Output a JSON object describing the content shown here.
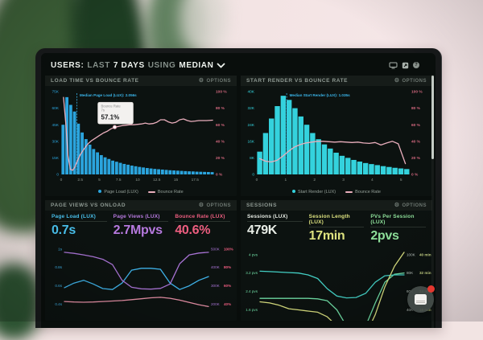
{
  "topbar": {
    "segments": [
      {
        "text": "USERS:",
        "emph": true
      },
      {
        "text": "LAST",
        "emph": false
      },
      {
        "text": "7 DAYS",
        "emph": true
      },
      {
        "text": "USING",
        "emph": false
      },
      {
        "text": "MEDIAN",
        "emph": true
      }
    ],
    "icons": [
      "monitor-icon",
      "export-icon",
      "help-icon"
    ]
  },
  "chart_data": [
    {
      "id": "load-time-vs-bounce-rate",
      "type": "bar",
      "title": "LOAD TIME VS BOUNCE RATE",
      "options_label": "OPTIONS",
      "xlabel": "seconds",
      "x_max": 20,
      "x_ticks": [
        0,
        2.5,
        5,
        7.5,
        10,
        12.5,
        15,
        17.5
      ],
      "left_ticks": [
        "0",
        "15K",
        "30K",
        "45K",
        "60K",
        "75K"
      ],
      "left_max_k": 75,
      "right_ticks": [
        "0 %",
        "20 %",
        "40 %",
        "60 %",
        "80 %",
        "100 %"
      ],
      "right_max_pct": 100,
      "bar_series": {
        "name": "Page Load (LUX)",
        "color": "#2ba4dd",
        "bin_width_s": 0.5,
        "values_k": [
          45,
          70,
          63,
          57,
          46,
          38,
          32,
          27,
          23,
          20,
          17.5,
          15.5,
          14,
          12.5,
          11.5,
          10.5,
          9.5,
          8.8,
          8,
          7.4,
          6.8,
          6.3,
          5.8,
          5.4,
          5,
          4.7,
          4.4,
          4.1,
          3.8,
          3.6,
          3.4,
          3.2,
          3,
          2.8,
          2.7,
          2.5,
          2.4,
          2.3,
          2.2,
          2.1
        ]
      },
      "line_series": {
        "name": "Bounce Rate",
        "color": "#e9aebc",
        "points": [
          [
            0.3,
            93
          ],
          [
            0.6,
            62
          ],
          [
            0.9,
            22
          ],
          [
            1.2,
            6
          ],
          [
            1.5,
            5
          ],
          [
            1.8,
            9
          ],
          [
            2.1,
            16
          ],
          [
            2.5,
            24
          ],
          [
            3,
            31
          ],
          [
            3.5,
            37
          ],
          [
            4,
            41
          ],
          [
            4.5,
            44
          ],
          [
            5,
            47
          ],
          [
            5.5,
            50
          ],
          [
            6,
            52
          ],
          [
            6.5,
            55
          ],
          [
            7,
            57.1
          ],
          [
            7.5,
            58
          ],
          [
            8,
            59
          ],
          [
            8.5,
            59.5
          ],
          [
            9,
            60
          ],
          [
            9.5,
            60
          ],
          [
            10,
            60.5
          ],
          [
            10.5,
            61
          ],
          [
            11,
            62
          ],
          [
            11.5,
            61
          ],
          [
            12,
            61.5
          ],
          [
            12.5,
            63
          ],
          [
            13,
            66
          ],
          [
            13.5,
            66
          ],
          [
            14,
            63.5
          ],
          [
            14.5,
            62
          ],
          [
            15,
            63
          ],
          [
            15.5,
            66
          ],
          [
            16,
            67
          ],
          [
            16.5,
            65
          ],
          [
            17,
            64
          ],
          [
            17.5,
            64.5
          ],
          [
            18,
            65
          ],
          [
            19,
            65
          ],
          [
            19.8,
            65.5
          ]
        ]
      },
      "median_annotation": {
        "label": "Median Page Load (LUX): 2.056s",
        "x_s": 2.056
      },
      "tooltip": {
        "title": "Bounce Rate",
        "x_label": "7s",
        "value": "57.1%",
        "x_s": 7,
        "y_pct": 57.1
      },
      "legend": [
        {
          "label": "Page Load (LUX)",
          "marker": "dot",
          "color": "#2ba4dd"
        },
        {
          "label": "Bounce Rate",
          "marker": "line",
          "color": "#e9aebc"
        }
      ]
    },
    {
      "id": "start-render-vs-bounce-rate",
      "type": "bar",
      "title": "START RENDER VS BOUNCE RATE",
      "options_label": "OPTIONS",
      "xlabel": "seconds",
      "x_max": 5.3,
      "x_ticks": [
        0,
        1,
        2,
        3,
        4,
        5
      ],
      "left_ticks": [
        "0",
        "8K",
        "16K",
        "24K",
        "32K",
        "40K"
      ],
      "left_max_k": 40,
      "right_ticks": [
        "0 %",
        "20 %",
        "40 %",
        "60 %",
        "80 %",
        "100 %"
      ],
      "right_max_pct": 100,
      "bar_series": {
        "name": "Start Render (LUX)",
        "color": "#34d2dd",
        "bin_width_s": 0.2,
        "values_k": [
          11,
          20,
          27,
          33,
          38,
          36,
          32,
          28,
          24,
          20,
          17,
          14.5,
          12.5,
          10.5,
          9,
          8,
          7,
          6.2,
          5.5,
          5,
          4.5,
          4,
          3.6,
          3.2,
          2.9,
          2.6
        ]
      },
      "line_series": {
        "name": "Bounce Rate",
        "color": "#e9aebc",
        "points": [
          [
            0.1,
            19
          ],
          [
            0.3,
            16
          ],
          [
            0.5,
            15
          ],
          [
            0.7,
            17
          ],
          [
            0.9,
            22
          ],
          [
            1.1,
            28
          ],
          [
            1.3,
            33
          ],
          [
            1.5,
            36
          ],
          [
            1.7,
            38
          ],
          [
            1.9,
            39
          ],
          [
            2.1,
            40
          ],
          [
            2.3,
            40
          ],
          [
            2.5,
            39.5
          ],
          [
            2.7,
            39
          ],
          [
            2.9,
            39.5
          ],
          [
            3.1,
            39
          ],
          [
            3.3,
            38.5
          ],
          [
            3.5,
            39
          ],
          [
            3.7,
            38
          ],
          [
            3.9,
            37.5
          ],
          [
            4.1,
            38.5
          ],
          [
            4.3,
            35.5
          ],
          [
            4.5,
            38
          ],
          [
            4.7,
            40
          ],
          [
            4.9,
            37
          ],
          [
            5.15,
            13
          ]
        ]
      },
      "median_annotation": {
        "label": "Median Start Render (LUX): 1.035s",
        "x_s": 1.035
      },
      "tooltip": null,
      "legend": [
        {
          "label": "Start Render (LUX)",
          "marker": "dot",
          "color": "#34d2dd"
        },
        {
          "label": "Bounce Rate",
          "marker": "line",
          "color": "#e9aebc"
        }
      ]
    },
    {
      "id": "page-views-vs-onload",
      "type": "line",
      "title": "PAGE VIEWS VS ONLOAD",
      "options_label": "OPTIONS",
      "metrics": [
        {
          "label": "Page Load (LUX)",
          "value": "0.7s",
          "color": "#4ac3f0"
        },
        {
          "label": "Page Views (LUX)",
          "value": "2.7Mpvs",
          "color": "#b679de"
        },
        {
          "label": "Bounce Rate (LUX)",
          "value": "40.6%",
          "color": "#ee5e80"
        }
      ],
      "left_ticks": [
        "1s",
        "0.8s",
        "0.6s",
        "0.4s"
      ],
      "right_ticks": [
        [
          "500K",
          "100%"
        ],
        [
          "400K",
          "80%"
        ],
        [
          "300K",
          "60%"
        ],
        [
          "200K",
          "40%"
        ]
      ],
      "right_tick_colors": [
        "#a873d4",
        "#ee5e80"
      ],
      "series": [
        {
          "name": "Page Load (LUX)",
          "unit": "s",
          "color": "#3fb3ea",
          "scale_min": 0.3,
          "scale_max": 1.05,
          "values": [
            0.58,
            0.63,
            0.66,
            0.62,
            0.57,
            0.56,
            0.63,
            0.77,
            0.79,
            0.79,
            0.78,
            0.63,
            0.56,
            0.6,
            0.66,
            0.7
          ]
        },
        {
          "name": "Page Views (LUX)",
          "unit": "K",
          "color": "#a873d4",
          "scale_min": 150,
          "scale_max": 525,
          "values": [
            482,
            476,
            468,
            458,
            444,
            415,
            330,
            292,
            284,
            282,
            286,
            310,
            420,
            468,
            478,
            482
          ]
        },
        {
          "name": "Bounce Rate (LUX)",
          "unit": "%",
          "color": "#e58fa5",
          "scale_min": 30,
          "scale_max": 105,
          "values": [
            43,
            42.5,
            42.2,
            42.5,
            43,
            43.5,
            44,
            45,
            46,
            47,
            47.5,
            46.5,
            44.5,
            42,
            39.5,
            37.5
          ]
        }
      ]
    },
    {
      "id": "sessions",
      "type": "line",
      "title": "SESSIONS",
      "options_label": "OPTIONS",
      "metrics": [
        {
          "label": "Sessions (LUX)",
          "value": "479K",
          "color": "#e8ede6"
        },
        {
          "label": "Session Length (LUX)",
          "value": "17min",
          "color": "#dde27f"
        },
        {
          "label": "PVs Per Session (LUX)",
          "value": "2pvs",
          "color": "#8ee09a"
        }
      ],
      "left_ticks": [
        "4 pvs",
        "3.2 pvs",
        "2.4 pvs",
        "1.6 pvs"
      ],
      "right_ticks": [
        [
          "100K",
          "40 min"
        ],
        [
          "80K",
          "32 min"
        ],
        [
          "60K",
          "24 min"
        ],
        [
          "40K",
          "16 min"
        ]
      ],
      "right_tick_colors": [
        "#b9c3bd",
        "#c9d687"
      ],
      "series": [
        {
          "name": "PVs Per Session (LUX)",
          "unit": "pvs",
          "color": "#6fdca4",
          "scale_min": 1.2,
          "scale_max": 4.2,
          "values": [
            2.1,
            2.1,
            2.1,
            2.1,
            2.1,
            2.1,
            2.08,
            2.0,
            1.6,
            0.9,
            0.4,
            0.9,
            1.9,
            2.8,
            3.15,
            3.2
          ]
        },
        {
          "name": "Sessions (LUX)",
          "unit": "K",
          "color": "#43cfc4",
          "scale_min": 30,
          "scale_max": 105,
          "values": [
            82,
            81.5,
            81,
            80.5,
            80,
            78,
            74,
            63,
            55,
            53,
            53.5,
            58,
            70,
            77,
            78,
            78
          ]
        },
        {
          "name": "Session Length (LUX)",
          "unit": "min",
          "color": "#d9df7f",
          "scale_min": 12,
          "scale_max": 42,
          "values": [
            19.5,
            19,
            18,
            16.5,
            16,
            15.5,
            15,
            13,
            9,
            5,
            2,
            5,
            14,
            26,
            35,
            41
          ]
        }
      ]
    }
  ],
  "colors": {
    "dashboard_bg": "#090e0c",
    "panel_bg": "#0c1210",
    "panel_header_bg": "#161c19",
    "median_line": "#3ab5ea",
    "axis_pct": "#d4687f",
    "wall": "#f3e4e4",
    "plant": "#2c5231"
  }
}
